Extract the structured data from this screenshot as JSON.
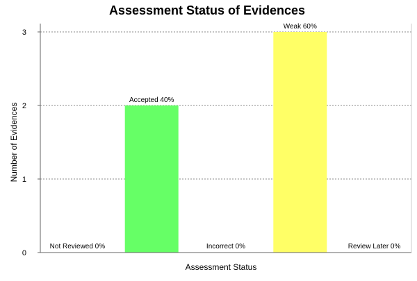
{
  "chart_data": {
    "type": "bar",
    "title": "Assessment Status of Evidences",
    "xlabel": "Assessment Status",
    "ylabel": "Number of Evidences",
    "categories": [
      "Not Reviewed",
      "Accepted",
      "Incorrect",
      "Weak",
      "Review Later"
    ],
    "values": [
      0,
      2,
      0,
      3,
      0
    ],
    "data_labels": [
      "Not Reviewed 0%",
      "Accepted 40%",
      "Incorrect 0%",
      "Weak 60%",
      "Review Later 0%"
    ],
    "bar_colors": [
      "#66ff66",
      "#66ff66",
      "#66ff66",
      "#ffff66",
      "#66ff66"
    ],
    "ylim": [
      0,
      3
    ],
    "yticks": [
      0,
      1,
      2,
      3
    ],
    "grid": true,
    "legend": "none"
  }
}
